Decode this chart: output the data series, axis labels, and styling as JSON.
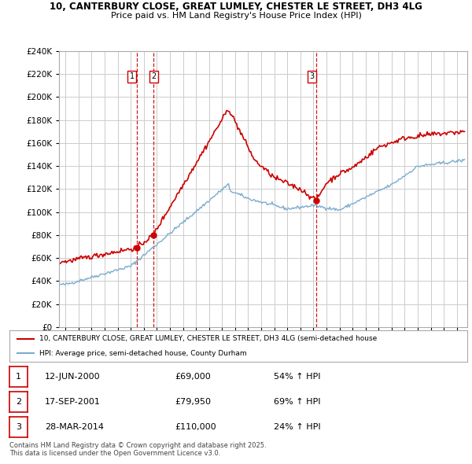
{
  "title_line1": "10, CANTERBURY CLOSE, GREAT LUMLEY, CHESTER LE STREET, DH3 4LG",
  "title_line2": "Price paid vs. HM Land Registry's House Price Index (HPI)",
  "ylim": [
    0,
    240000
  ],
  "yticks": [
    0,
    20000,
    40000,
    60000,
    80000,
    100000,
    120000,
    140000,
    160000,
    180000,
    200000,
    220000,
    240000
  ],
  "xlim_start": 1994.5,
  "xlim_end": 2025.8,
  "background_color": "#ffffff",
  "grid_color": "#cccccc",
  "sale_dates": [
    2000.45,
    2001.71,
    2014.23
  ],
  "sale_prices": [
    69000,
    79950,
    110000
  ],
  "sale_labels": [
    "1",
    "2",
    "3"
  ],
  "vline_color": "#cc0000",
  "dot_color": "#cc0000",
  "red_line_color": "#cc0000",
  "blue_line_color": "#7aacce",
  "legend_label_red": "10, CANTERBURY CLOSE, GREAT LUMLEY, CHESTER LE STREET, DH3 4LG (semi-detached house",
  "legend_label_blue": "HPI: Average price, semi-detached house, County Durham",
  "table_data": [
    [
      "1",
      "12-JUN-2000",
      "£69,000",
      "54% ↑ HPI"
    ],
    [
      "2",
      "17-SEP-2001",
      "£79,950",
      "69% ↑ HPI"
    ],
    [
      "3",
      "28-MAR-2014",
      "£110,000",
      "24% ↑ HPI"
    ]
  ],
  "footnote": "Contains HM Land Registry data © Crown copyright and database right 2025.\nThis data is licensed under the Open Government Licence v3.0."
}
